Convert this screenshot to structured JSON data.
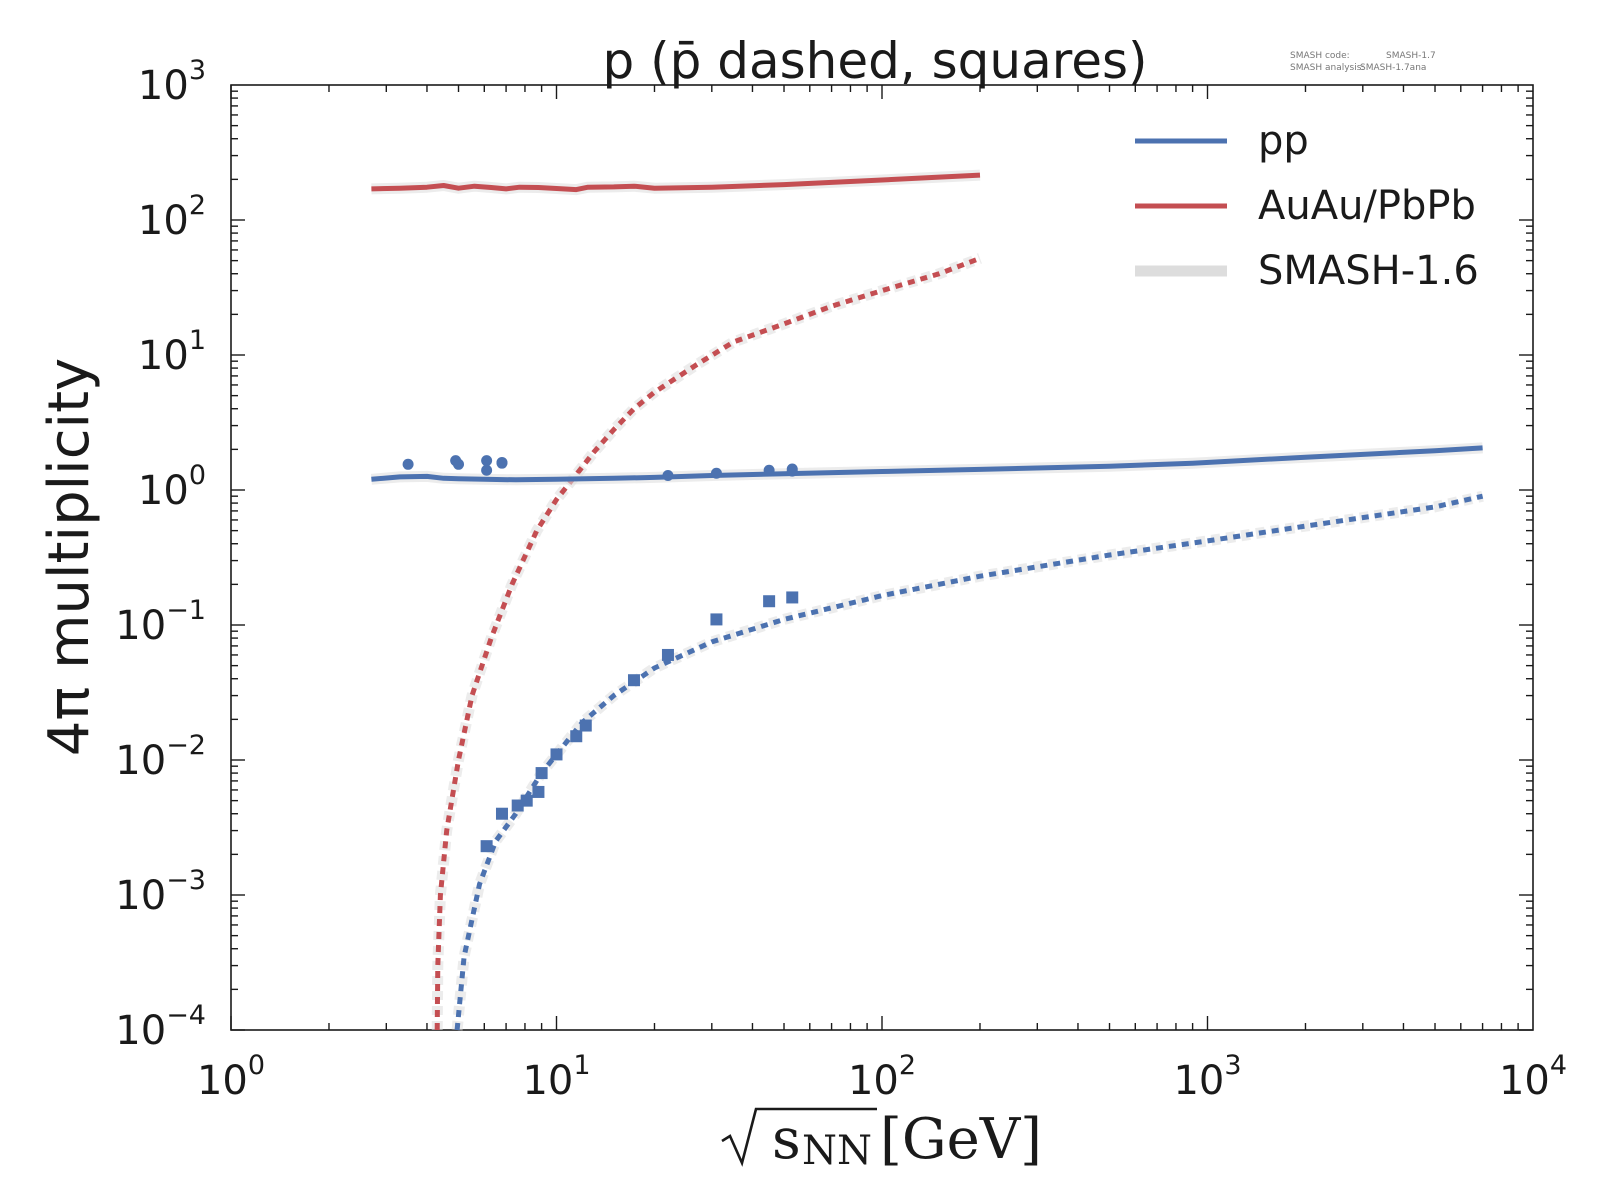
{
  "chart_data": {
    "type": "line",
    "title": "p (p̄ dashed, squares)",
    "xlabel": {
      "main": "s",
      "sub": "NN",
      "unit": "[GeV]"
    },
    "ylabel": "4π multiplicity",
    "xscale": "log",
    "yscale": "log",
    "xlim": [
      1,
      10000
    ],
    "ylim": [
      0.0001,
      1000
    ],
    "x_ticks": [
      {
        "base": "10",
        "exp": "0"
      },
      {
        "base": "10",
        "exp": "1"
      },
      {
        "base": "10",
        "exp": "2"
      },
      {
        "base": "10",
        "exp": "3"
      },
      {
        "base": "10",
        "exp": "4"
      }
    ],
    "y_ticks": [
      {
        "base": "10",
        "exp": "−4"
      },
      {
        "base": "10",
        "exp": "−3"
      },
      {
        "base": "10",
        "exp": "−2"
      },
      {
        "base": "10",
        "exp": "−1"
      },
      {
        "base": "10",
        "exp": "0"
      },
      {
        "base": "10",
        "exp": "1"
      },
      {
        "base": "10",
        "exp": "2"
      },
      {
        "base": "10",
        "exp": "3"
      }
    ],
    "legend": {
      "placement": "top-right",
      "entries": [
        {
          "label": "pp",
          "color": "#4c72b0",
          "style": "solid"
        },
        {
          "label": "AuAu/PbPb",
          "color": "#c44e52",
          "style": "solid"
        },
        {
          "label": "SMASH-1.6",
          "color": "#dddddd",
          "style": "band"
        }
      ]
    },
    "version_info": {
      "line1_label": "SMASH code:",
      "line1_value": "SMASH-1.7",
      "line2_label": "SMASH analysis:",
      "line2_value": "SMASH-1.7ana"
    },
    "series": [
      {
        "name": "AuAu/PbPb p",
        "color": "#c44e52",
        "style": "solid",
        "points": [
          [
            2.7,
            170
          ],
          [
            3.3,
            172
          ],
          [
            4.0,
            175
          ],
          [
            4.5,
            180
          ],
          [
            5.0,
            172
          ],
          [
            5.6,
            178
          ],
          [
            6.3,
            174
          ],
          [
            7.0,
            170
          ],
          [
            7.7,
            175
          ],
          [
            8.8,
            174
          ],
          [
            10,
            171
          ],
          [
            11.5,
            168
          ],
          [
            12.5,
            175
          ],
          [
            15,
            176
          ],
          [
            17.3,
            178
          ],
          [
            20,
            172
          ],
          [
            30,
            175
          ],
          [
            50,
            183
          ],
          [
            70,
            190
          ],
          [
            100,
            198
          ],
          [
            150,
            208
          ],
          [
            200,
            215
          ]
        ]
      },
      {
        "name": "AuAu/PbPb pbar",
        "color": "#c44e52",
        "style": "dashed",
        "points": [
          [
            4.3,
            0.0001
          ],
          [
            4.32,
            0.0003
          ],
          [
            4.4,
            0.001
          ],
          [
            4.6,
            0.003
          ],
          [
            5.0,
            0.01
          ],
          [
            5.5,
            0.03
          ],
          [
            6.3,
            0.08
          ],
          [
            7.3,
            0.2
          ],
          [
            8.7,
            0.5
          ],
          [
            10,
            0.85
          ],
          [
            11.5,
            1.3
          ],
          [
            13,
            1.9
          ],
          [
            15,
            2.8
          ],
          [
            17.3,
            4
          ],
          [
            20,
            5.3
          ],
          [
            27,
            8.5
          ],
          [
            35,
            12.5
          ],
          [
            50,
            17
          ],
          [
            70,
            23
          ],
          [
            100,
            30
          ],
          [
            150,
            40
          ],
          [
            200,
            52
          ]
        ]
      },
      {
        "name": "pp p",
        "color": "#4c72b0",
        "style": "solid",
        "points": [
          [
            2.7,
            1.2
          ],
          [
            3.3,
            1.25
          ],
          [
            4.0,
            1.26
          ],
          [
            4.5,
            1.22
          ],
          [
            5.0,
            1.21
          ],
          [
            6.0,
            1.2
          ],
          [
            7.5,
            1.19
          ],
          [
            10,
            1.2
          ],
          [
            15,
            1.22
          ],
          [
            20,
            1.24
          ],
          [
            30,
            1.28
          ],
          [
            50,
            1.32
          ],
          [
            100,
            1.37
          ],
          [
            200,
            1.42
          ],
          [
            500,
            1.5
          ],
          [
            900,
            1.58
          ],
          [
            2000,
            1.75
          ],
          [
            5000,
            1.95
          ],
          [
            7000,
            2.05
          ]
        ]
      },
      {
        "name": "pp pbar",
        "color": "#4c72b0",
        "style": "dashed",
        "points": [
          [
            4.95,
            0.0001
          ],
          [
            5.2,
            0.00035
          ],
          [
            5.8,
            0.0012
          ],
          [
            6.5,
            0.0025
          ],
          [
            7.5,
            0.004
          ],
          [
            9,
            0.008
          ],
          [
            10,
            0.011
          ],
          [
            12,
            0.019
          ],
          [
            15,
            0.03
          ],
          [
            20,
            0.048
          ],
          [
            30,
            0.075
          ],
          [
            50,
            0.11
          ],
          [
            100,
            0.165
          ],
          [
            200,
            0.23
          ],
          [
            500,
            0.33
          ],
          [
            1000,
            0.42
          ],
          [
            2000,
            0.54
          ],
          [
            5000,
            0.75
          ],
          [
            7000,
            0.9
          ]
        ]
      }
    ],
    "scatter": [
      {
        "name": "pp p data",
        "color": "#4c72b0",
        "marker": "circle",
        "points": [
          [
            3.5,
            1.55
          ],
          [
            4.9,
            1.65
          ],
          [
            5.0,
            1.55
          ],
          [
            6.1,
            1.65
          ],
          [
            6.1,
            1.4
          ],
          [
            6.8,
            1.6
          ],
          [
            6.8,
            1.58
          ],
          [
            22,
            1.28
          ],
          [
            31,
            1.33
          ],
          [
            45,
            1.4
          ],
          [
            53,
            1.43
          ],
          [
            53,
            1.38
          ]
        ]
      },
      {
        "name": "pp pbar data",
        "color": "#4c72b0",
        "marker": "square",
        "points": [
          [
            6.1,
            0.0023
          ],
          [
            6.8,
            0.004
          ],
          [
            7.6,
            0.0046
          ],
          [
            8.1,
            0.005
          ],
          [
            8.8,
            0.0058
          ],
          [
            9.0,
            0.008
          ],
          [
            10,
            0.011
          ],
          [
            11.5,
            0.015
          ],
          [
            12.3,
            0.018
          ],
          [
            17.3,
            0.039
          ],
          [
            22,
            0.06
          ],
          [
            31,
            0.11
          ],
          [
            45,
            0.15
          ],
          [
            53,
            0.16
          ]
        ]
      }
    ]
  }
}
